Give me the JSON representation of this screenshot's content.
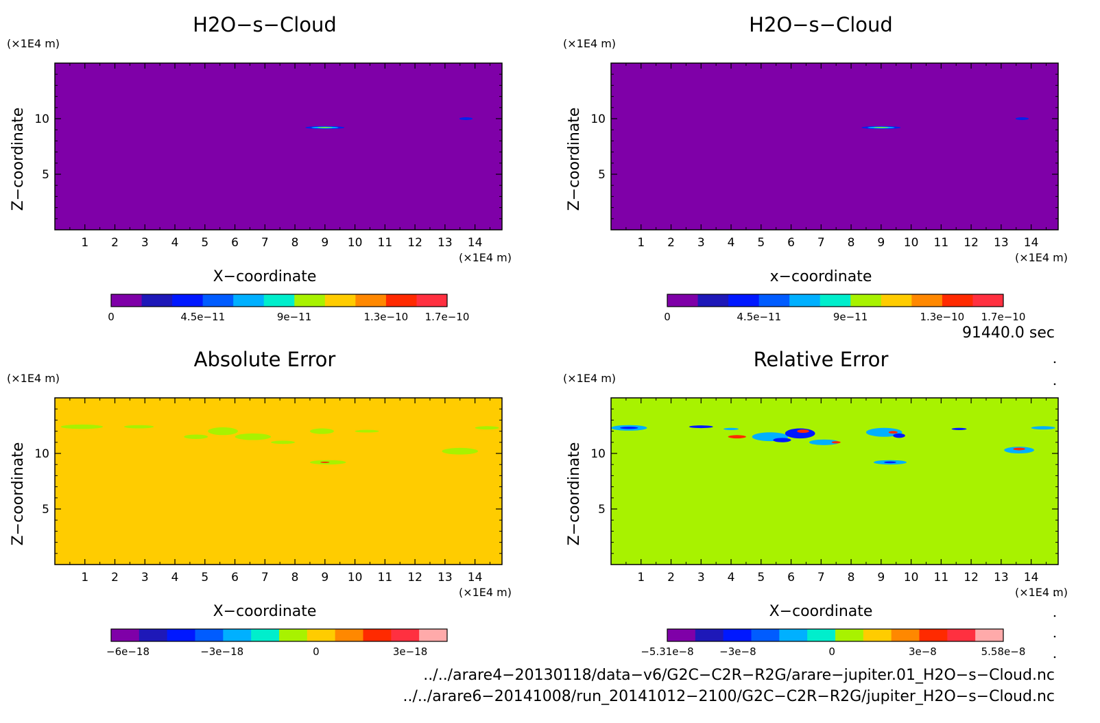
{
  "chart_data": [
    {
      "type": "heatmap",
      "title": "H2O−s−Cloud",
      "xlabel": "X−coordinate",
      "ylabel": "Z−coordinate",
      "x_unit": "(×1E4 m)",
      "y_unit": "(×1E4 m)",
      "xlim": [
        0,
        14.9
      ],
      "ylim": [
        0,
        15
      ],
      "x_ticks": [
        "1",
        "2",
        "3",
        "4",
        "5",
        "6",
        "7",
        "8",
        "9",
        "10",
        "11",
        "12",
        "13",
        "14"
      ],
      "y_ticks": [
        "5",
        "10"
      ],
      "background_color": "#7f00a8",
      "features": [
        {
          "x": 9.0,
          "z": 9.2,
          "rx": 0.65,
          "rz": 0.13,
          "color": "#0022ee"
        },
        {
          "x": 9.0,
          "z": 9.2,
          "rx": 0.45,
          "rz": 0.08,
          "color": "#00aaff"
        },
        {
          "x": 9.0,
          "z": 9.2,
          "rx": 0.25,
          "rz": 0.04,
          "color": "#a8f200"
        },
        {
          "x": 13.7,
          "z": 10.0,
          "rx": 0.22,
          "rz": 0.12,
          "color": "#0022ee"
        }
      ],
      "colorbar": {
        "colors": [
          "#7f00a8",
          "#1e18b8",
          "#0018ff",
          "#005cff",
          "#00b0ff",
          "#00eecc",
          "#a8f200",
          "#ffcc00",
          "#ff8800",
          "#ff2a00",
          "#ff3040"
        ],
        "tick_labels": [
          "0",
          "4.5e−11",
          "9e−11",
          "1.3e−10",
          "1.7e−10"
        ],
        "tick_fractions": [
          0.0,
          0.273,
          0.545,
          0.818,
          1.0
        ]
      }
    },
    {
      "type": "heatmap",
      "title": "H2O−s−Cloud",
      "xlabel": "x−coordinate",
      "ylabel": "Z−coordinate",
      "x_unit": "(×1E4 m)",
      "y_unit": "(×1E4 m)",
      "xlim": [
        0,
        14.9
      ],
      "ylim": [
        0,
        15
      ],
      "x_ticks": [
        "1",
        "2",
        "3",
        "4",
        "5",
        "6",
        "7",
        "8",
        "9",
        "10",
        "11",
        "12",
        "13",
        "14"
      ],
      "y_ticks": [
        "5",
        "10"
      ],
      "background_color": "#7f00a8",
      "features": [
        {
          "x": 9.0,
          "z": 9.2,
          "rx": 0.65,
          "rz": 0.13,
          "color": "#0022ee"
        },
        {
          "x": 9.0,
          "z": 9.2,
          "rx": 0.45,
          "rz": 0.08,
          "color": "#00aaff"
        },
        {
          "x": 9.0,
          "z": 9.2,
          "rx": 0.25,
          "rz": 0.04,
          "color": "#a8f200"
        },
        {
          "x": 13.7,
          "z": 10.0,
          "rx": 0.22,
          "rz": 0.12,
          "color": "#0022ee"
        }
      ],
      "colorbar": {
        "colors": [
          "#7f00a8",
          "#1e18b8",
          "#0018ff",
          "#005cff",
          "#00b0ff",
          "#00eecc",
          "#a8f200",
          "#ffcc00",
          "#ff8800",
          "#ff2a00",
          "#ff3040"
        ],
        "tick_labels": [
          "0",
          "4.5e−11",
          "9e−11",
          "1.3e−10",
          "1.7e−10"
        ],
        "tick_fractions": [
          0.0,
          0.273,
          0.545,
          0.818,
          1.0
        ]
      }
    },
    {
      "type": "heatmap",
      "title": "Absolute Error",
      "xlabel": "X−coordinate",
      "ylabel": "Z−coordinate",
      "x_unit": "(×1E4 m)",
      "y_unit": "(×1E4 m)",
      "xlim": [
        0,
        14.9
      ],
      "ylim": [
        0,
        15
      ],
      "x_ticks": [
        "1",
        "2",
        "3",
        "4",
        "5",
        "6",
        "7",
        "8",
        "9",
        "10",
        "11",
        "12",
        "13",
        "14"
      ],
      "y_ticks": [
        "5",
        "10"
      ],
      "background_color": "#ffcc00",
      "features": [
        {
          "x": 0.9,
          "z": 12.4,
          "rx": 0.7,
          "rz": 0.2,
          "color": "#a8f200"
        },
        {
          "x": 2.8,
          "z": 12.4,
          "rx": 0.5,
          "rz": 0.15,
          "color": "#a8f200"
        },
        {
          "x": 4.7,
          "z": 11.5,
          "rx": 0.4,
          "rz": 0.2,
          "color": "#a8f200"
        },
        {
          "x": 5.6,
          "z": 12.0,
          "rx": 0.5,
          "rz": 0.35,
          "color": "#a8f200"
        },
        {
          "x": 6.6,
          "z": 11.5,
          "rx": 0.6,
          "rz": 0.3,
          "color": "#a8f200"
        },
        {
          "x": 7.6,
          "z": 11.0,
          "rx": 0.4,
          "rz": 0.15,
          "color": "#a8f200"
        },
        {
          "x": 8.9,
          "z": 12.0,
          "rx": 0.4,
          "rz": 0.25,
          "color": "#a8f200"
        },
        {
          "x": 10.4,
          "z": 12.0,
          "rx": 0.4,
          "rz": 0.12,
          "color": "#a8f200"
        },
        {
          "x": 13.5,
          "z": 10.2,
          "rx": 0.6,
          "rz": 0.3,
          "color": "#a8f200"
        },
        {
          "x": 14.4,
          "z": 12.3,
          "rx": 0.4,
          "rz": 0.15,
          "color": "#a8f200"
        },
        {
          "x": 9.1,
          "z": 9.2,
          "rx": 0.6,
          "rz": 0.2,
          "color": "#a8f200"
        },
        {
          "x": 9.0,
          "z": 9.2,
          "rx": 0.15,
          "rz": 0.06,
          "color": "#ff2a00"
        }
      ],
      "colorbar": {
        "colors": [
          "#7f00a8",
          "#1e18b8",
          "#0018ff",
          "#005cff",
          "#00b0ff",
          "#00eecc",
          "#a8f200",
          "#ffcc00",
          "#ff8800",
          "#ff2a00",
          "#ff3040",
          "#ffaaaa"
        ],
        "tick_labels": [
          "−6e−18",
          "−3e−18",
          "0",
          "3e−18"
        ],
        "tick_fractions": [
          0.05,
          0.33,
          0.61,
          0.89
        ]
      }
    },
    {
      "type": "heatmap",
      "title": "Relative Error",
      "xlabel": "X−coordinate",
      "ylabel": "Z−coordinate",
      "x_unit": "(×1E4 m)",
      "y_unit": "(×1E4 m)",
      "xlim": [
        0,
        14.9
      ],
      "ylim": [
        0,
        15
      ],
      "x_ticks": [
        "1",
        "2",
        "3",
        "4",
        "5",
        "6",
        "7",
        "8",
        "9",
        "10",
        "11",
        "12",
        "13",
        "14"
      ],
      "y_ticks": [
        "5",
        "10"
      ],
      "background_color": "#a8f200",
      "features": [
        {
          "x": 0.6,
          "z": 12.3,
          "rx": 0.6,
          "rz": 0.25,
          "color": "#00b0ff"
        },
        {
          "x": 0.6,
          "z": 12.3,
          "rx": 0.3,
          "rz": 0.1,
          "color": "#0018ff"
        },
        {
          "x": 3.0,
          "z": 12.4,
          "rx": 0.4,
          "rz": 0.12,
          "color": "#0018ff"
        },
        {
          "x": 4.0,
          "z": 12.2,
          "rx": 0.25,
          "rz": 0.1,
          "color": "#00b0ff"
        },
        {
          "x": 4.2,
          "z": 11.5,
          "rx": 0.3,
          "rz": 0.15,
          "color": "#ff2a00"
        },
        {
          "x": 5.3,
          "z": 11.5,
          "rx": 0.6,
          "rz": 0.4,
          "color": "#00b0ff"
        },
        {
          "x": 5.7,
          "z": 11.2,
          "rx": 0.3,
          "rz": 0.2,
          "color": "#0018ff"
        },
        {
          "x": 6.3,
          "z": 11.8,
          "rx": 0.5,
          "rz": 0.45,
          "color": "#0018ff"
        },
        {
          "x": 6.4,
          "z": 12.0,
          "rx": 0.2,
          "rz": 0.15,
          "color": "#ff2a00"
        },
        {
          "x": 7.1,
          "z": 11.0,
          "rx": 0.5,
          "rz": 0.25,
          "color": "#00b0ff"
        },
        {
          "x": 7.5,
          "z": 11.0,
          "rx": 0.15,
          "rz": 0.1,
          "color": "#ff2a00"
        },
        {
          "x": 9.1,
          "z": 11.9,
          "rx": 0.6,
          "rz": 0.4,
          "color": "#00b0ff"
        },
        {
          "x": 9.4,
          "z": 11.9,
          "rx": 0.15,
          "rz": 0.12,
          "color": "#ff2a00"
        },
        {
          "x": 9.6,
          "z": 11.6,
          "rx": 0.2,
          "rz": 0.2,
          "color": "#0018ff"
        },
        {
          "x": 11.6,
          "z": 12.2,
          "rx": 0.25,
          "rz": 0.1,
          "color": "#0018ff"
        },
        {
          "x": 13.6,
          "z": 10.3,
          "rx": 0.5,
          "rz": 0.3,
          "color": "#00b0ff"
        },
        {
          "x": 13.6,
          "z": 10.4,
          "rx": 0.2,
          "rz": 0.12,
          "color": "#ff2a00"
        },
        {
          "x": 14.4,
          "z": 12.3,
          "rx": 0.4,
          "rz": 0.15,
          "color": "#00b0ff"
        },
        {
          "x": 9.3,
          "z": 9.2,
          "rx": 0.55,
          "rz": 0.2,
          "color": "#00b0ff"
        },
        {
          "x": 9.3,
          "z": 9.2,
          "rx": 0.2,
          "rz": 0.08,
          "color": "#0018ff"
        }
      ],
      "colorbar": {
        "colors": [
          "#7f00a8",
          "#1e18b8",
          "#0018ff",
          "#005cff",
          "#00b0ff",
          "#00eecc",
          "#a8f200",
          "#ffcc00",
          "#ff8800",
          "#ff2a00",
          "#ff3040",
          "#ffaaaa"
        ],
        "tick_labels": [
          "−5.31e−8",
          "−3e−8",
          "0",
          "3e−8",
          "5.58e−8"
        ],
        "tick_fractions": [
          0.0,
          0.21,
          0.49,
          0.76,
          1.0
        ]
      }
    }
  ],
  "time_label": "91440.0 sec",
  "footer_lines": [
    "../../arare4−20130118/data−v6/G2C−C2R−R2G/arare−jupiter.01_H2O−s−Cloud.nc",
    "../../arare6−20141008/run_20141012−2100/G2C−C2R−R2G/jupiter_H2O−s−Cloud.nc"
  ]
}
